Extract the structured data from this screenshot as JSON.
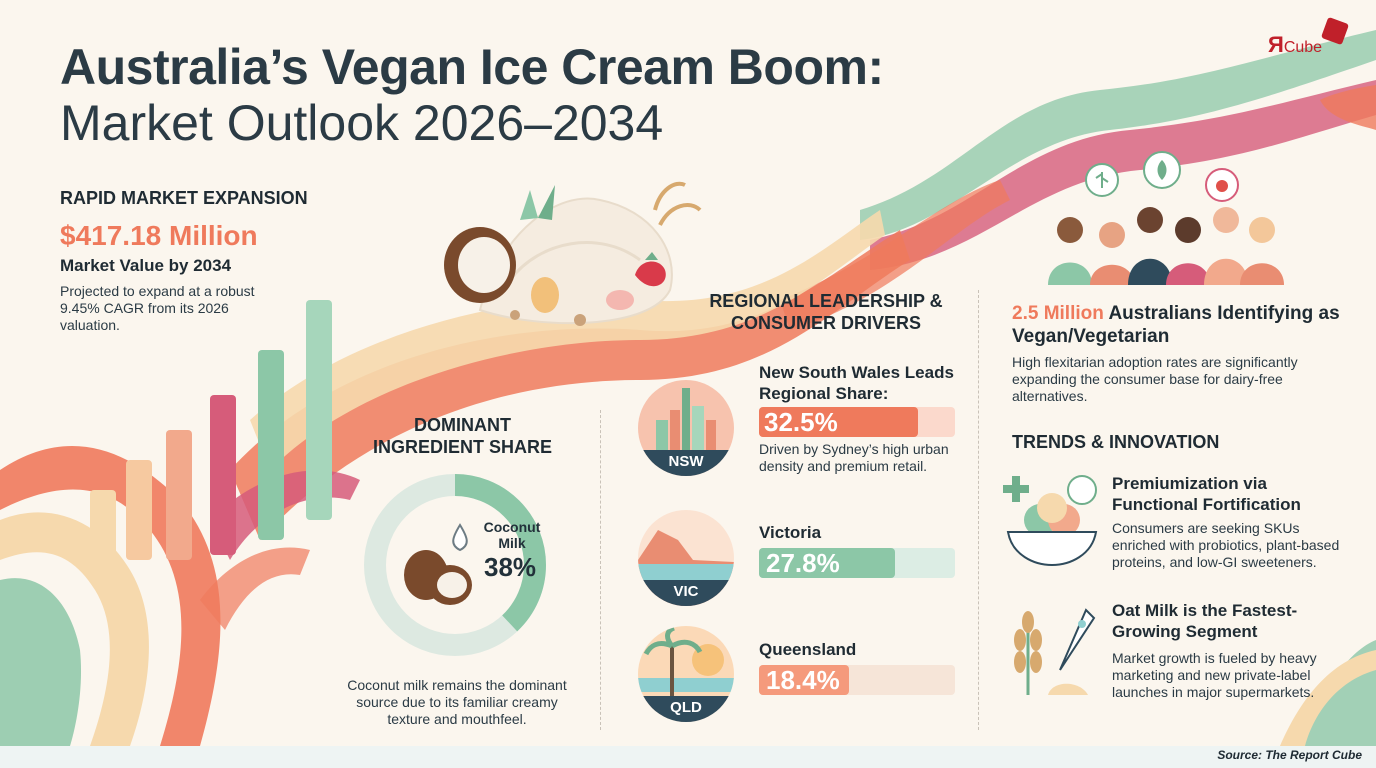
{
  "header": {
    "title_line1": "Australia’s Vegan Ice Cream Boom:",
    "title_line2": "Market Outlook 2026–2034",
    "logo_text_r": "Я",
    "logo_text_cube": "Cube"
  },
  "market": {
    "heading": "RAPID MARKET EXPANSION",
    "value": "$417.18 Million",
    "value_label": "Market Value by 2034",
    "description": "Projected to expand at a robust 9.45% CAGR from its 2026 valuation."
  },
  "ingredient": {
    "heading": "DOMINANT INGREDIENT SHARE",
    "segment_label": "Coconut Milk",
    "segment_share": "38%",
    "segment_fraction": 0.38,
    "description": "Coconut milk remains the dominant source due to its familiar creamy texture and mouthfeel."
  },
  "regional": {
    "heading": "REGIONAL LEADERSHIP & CONSUMER DRIVERS",
    "regions": [
      {
        "badge": "NSW",
        "name": "New South Wales Leads Regional Share:",
        "share": "32.5%",
        "fraction": 0.325,
        "description": "Driven by Sydney’s high urban density and premium retail."
      },
      {
        "badge": "VIC",
        "name": "Victoria",
        "share": "27.8%",
        "fraction": 0.278,
        "description": ""
      },
      {
        "badge": "QLD",
        "name": "Queensland",
        "share": "18.4%",
        "fraction": 0.184,
        "description": ""
      }
    ]
  },
  "consumers": {
    "highlight": "2.5 Million",
    "title_rest": "Australians Identifying as Vegan/Vegetarian",
    "description": "High flexitarian adoption rates are significantly expanding the consumer base for dairy-free alternatives."
  },
  "trends": {
    "heading": "TRENDS & INNOVATION",
    "items": [
      {
        "icon": "ice-cream-bowl-icon",
        "title": "Premiumization via Functional Fortification",
        "description": "Consumers are seeking SKUs enriched with probiotics, plant-based proteins, and low-GI sweeteners."
      },
      {
        "icon": "oat-rocket-icon",
        "title": "Oat Milk is the Fastest-Growing Segment",
        "description": "Market growth is fueled by heavy marketing and new private-label launches in major supermarkets."
      }
    ]
  },
  "footer": {
    "source": "Source: The Report Cube"
  },
  "colors": {
    "coral": "#ef7a5c",
    "sage": "#8cc7a7",
    "pink": "#d65c7a",
    "cream": "#f6d9ad",
    "navy": "#2f4b5c"
  }
}
